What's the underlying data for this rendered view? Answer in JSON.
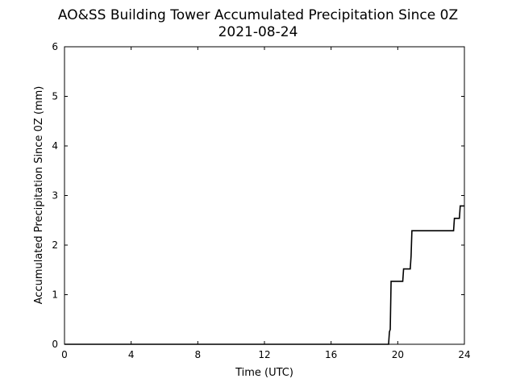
{
  "chart_data": {
    "type": "line",
    "title": "AO&SS Building Tower Accumulated Precipitation Since 0Z",
    "subtitle": "2021-08-24",
    "xlabel": "Time (UTC)",
    "ylabel": "Accumulated Precipitation Since 0Z (mm)",
    "xlim": [
      0,
      24
    ],
    "ylim": [
      0,
      6
    ],
    "xticks": [
      0,
      4,
      8,
      12,
      16,
      20,
      24
    ],
    "yticks": [
      0,
      1,
      2,
      3,
      4,
      5,
      6
    ],
    "grid": false,
    "line_color": "#000000",
    "series": [
      {
        "x": [
          0,
          19.45,
          19.5,
          19.55,
          19.6,
          19.65,
          20.3,
          20.35,
          20.75,
          20.8,
          20.85,
          23.35,
          23.4,
          23.7,
          23.75,
          24
        ],
        "y": [
          0,
          0,
          0.25,
          0.3,
          1.27,
          1.27,
          1.27,
          1.52,
          1.52,
          1.78,
          2.29,
          2.29,
          2.54,
          2.54,
          2.79,
          2.79
        ]
      }
    ]
  }
}
